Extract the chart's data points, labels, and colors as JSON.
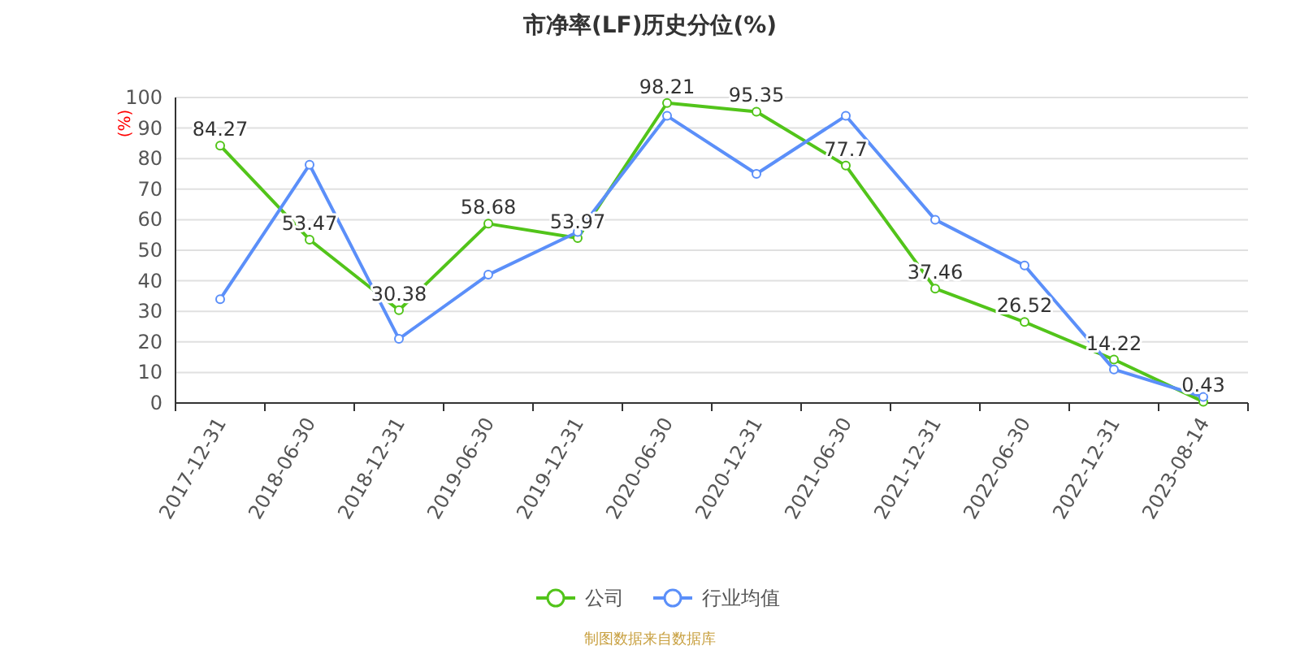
{
  "chart_data": {
    "type": "line",
    "title": "市净率(LF)历史分位(%)",
    "ylabel": "(%)",
    "categories": [
      "2017-12-31",
      "2018-06-30",
      "2018-12-31",
      "2019-06-30",
      "2019-12-31",
      "2020-06-30",
      "2020-12-31",
      "2021-06-30",
      "2021-12-31",
      "2022-06-30",
      "2022-12-31",
      "2023-08-14"
    ],
    "series": [
      {
        "name": "公司",
        "color": "#52c41a",
        "values": [
          84.27,
          53.47,
          30.38,
          58.68,
          53.97,
          98.21,
          95.35,
          77.7,
          37.46,
          26.52,
          14.22,
          0.43
        ],
        "data_labels": true
      },
      {
        "name": "行业均值",
        "color": "#5b8ff9",
        "values": [
          34,
          78,
          21,
          42,
          56,
          94,
          75,
          94,
          60,
          45,
          11,
          2
        ]
      }
    ],
    "ylim": [
      0,
      100
    ],
    "yticks": [
      0,
      10,
      20,
      30,
      40,
      50,
      60,
      70,
      80,
      90,
      100
    ],
    "grid": "y",
    "legend": "bottom",
    "marker": "circle",
    "line_style": "solid",
    "annotations": [
      "制图数据来自数据库"
    ]
  }
}
